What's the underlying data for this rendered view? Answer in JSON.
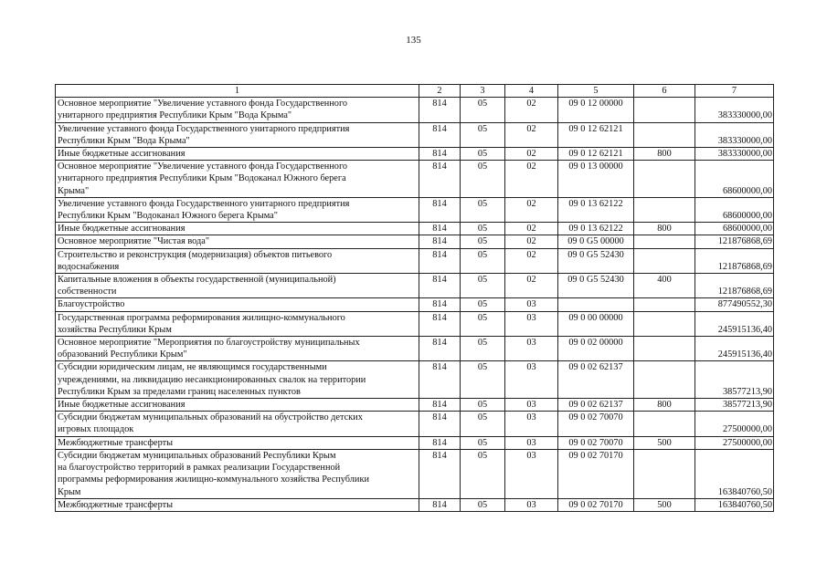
{
  "page_number": "135",
  "headers": [
    "1",
    "2",
    "3",
    "4",
    "5",
    "6",
    "7"
  ],
  "rows": [
    {
      "name": "Основное мероприятие \"Увеличение уставного фонда Государственного\nунитарного предприятия Республики Крым \"Вода Крыма\"",
      "c2": "814",
      "c3": "05",
      "c4": "02",
      "c5": "09 0 12 00000",
      "c6": "",
      "c7": "383330000,00"
    },
    {
      "name": "Увеличение уставного фонда Государственного унитарного предприятия\nРеспублики Крым \"Вода Крыма\"",
      "c2": "814",
      "c3": "05",
      "c4": "02",
      "c5": "09 0 12 62121",
      "c6": "",
      "c7": "383330000,00"
    },
    {
      "name": "Иные бюджетные ассигнования",
      "c2": "814",
      "c3": "05",
      "c4": "02",
      "c5": "09 0 12 62121",
      "c6": "800",
      "c7": "383330000,00"
    },
    {
      "name": "Основное мероприятие \"Увеличение уставного фонда Государственного\nунитарного предприятия Республики Крым \"Водоканал Южного берега\nКрыма\"",
      "c2": "814",
      "c3": "05",
      "c4": "02",
      "c5": "09 0 13 00000",
      "c6": "",
      "c7": "68600000,00"
    },
    {
      "name": "Увеличение уставного фонда Государственного унитарного предприятия\nРеспублики Крым \"Водоканал Южного берега Крыма\"",
      "c2": "814",
      "c3": "05",
      "c4": "02",
      "c5": "09 0 13 62122",
      "c6": "",
      "c7": "68600000,00"
    },
    {
      "name": "Иные бюджетные ассигнования",
      "c2": "814",
      "c3": "05",
      "c4": "02",
      "c5": "09 0 13 62122",
      "c6": "800",
      "c7": "68600000,00"
    },
    {
      "name": "Основное мероприятие \"Чистая вода\"",
      "c2": "814",
      "c3": "05",
      "c4": "02",
      "c5": "09 0 G5 00000",
      "c6": "",
      "c7": "121876868,69"
    },
    {
      "name": "Строительство и реконструкция (модернизация) объектов питьевого\nводоснабжения",
      "c2": "814",
      "c3": "05",
      "c4": "02",
      "c5": "09 0 G5 52430",
      "c6": "",
      "c7": "121876868,69"
    },
    {
      "name": "Капитальные вложения в объекты государственной (муниципальной)\nсобственности",
      "c2": "814",
      "c3": "05",
      "c4": "02",
      "c5": "09 0 G5 52430",
      "c6": "400",
      "c7": "121876868,69"
    },
    {
      "name": "Благоустройство",
      "c2": "814",
      "c3": "05",
      "c4": "03",
      "c5": "",
      "c6": "",
      "c7": "877490552,30"
    },
    {
      "name": "Государственная программа реформирования жилищно-коммунального\nхозяйства Республики Крым",
      "c2": "814",
      "c3": "05",
      "c4": "03",
      "c5": "09 0 00 00000",
      "c6": "",
      "c7": "245915136,40"
    },
    {
      "name": "Основное мероприятие \"Мероприятия по благоустройству муниципальных\nобразований Республики Крым\"",
      "c2": "814",
      "c3": "05",
      "c4": "03",
      "c5": "09 0 02 00000",
      "c6": "",
      "c7": "245915136,40"
    },
    {
      "name": "Субсидии юридическим лицам, не являющимся государственными\nучреждениями, на ликвидацию несанкционированных свалок на территории\nРеспублики Крым за пределами границ населенных пунктов",
      "c2": "814",
      "c3": "05",
      "c4": "03",
      "c5": "09 0 02 62137",
      "c6": "",
      "c7": "38577213,90"
    },
    {
      "name": "Иные бюджетные ассигнования",
      "c2": "814",
      "c3": "05",
      "c4": "03",
      "c5": "09 0 02 62137",
      "c6": "800",
      "c7": "38577213,90"
    },
    {
      "name": "Субсидии бюджетам муниципальных образований на обустройство детских\nигровых площадок",
      "c2": "814",
      "c3": "05",
      "c4": "03",
      "c5": "09 0 02 70070",
      "c6": "",
      "c7": "27500000,00"
    },
    {
      "name": "Межбюджетные трансферты",
      "c2": "814",
      "c3": "05",
      "c4": "03",
      "c5": "09 0 02 70070",
      "c6": "500",
      "c7": "27500000,00"
    },
    {
      "name": "Субсидии бюджетам муниципальных образований Республики Крым\nна благоустройство территорий в рамках реализации Государственной\nпрограммы реформирования жилищно-коммунального хозяйства Республики\nКрым",
      "c2": "814",
      "c3": "05",
      "c4": "03",
      "c5": "09 0 02 70170",
      "c6": "",
      "c7": "163840760,50"
    },
    {
      "name": "Межбюджетные трансферты",
      "c2": "814",
      "c3": "05",
      "c4": "03",
      "c5": "09 0 02 70170",
      "c6": "500",
      "c7": "163840760,50"
    }
  ]
}
